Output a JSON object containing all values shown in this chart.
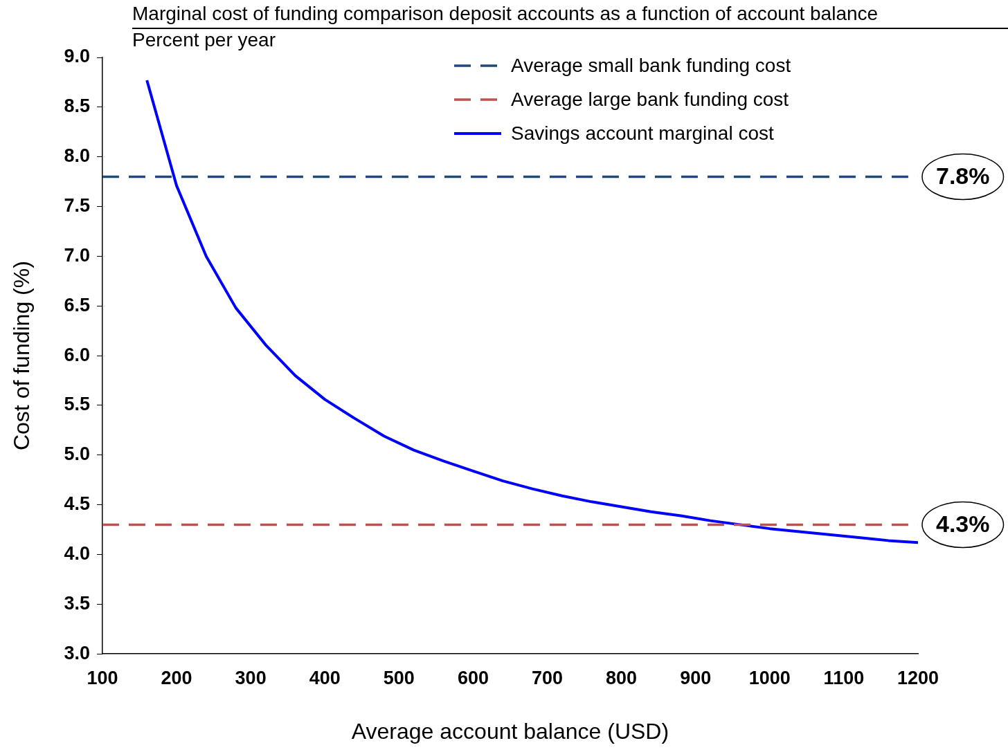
{
  "chart_data": {
    "type": "line",
    "title": "Marginal cost of funding comparison deposit accounts as a function of account balance",
    "subtitle": "Percent per year",
    "xlabel": "Average account balance (USD)",
    "ylabel": "Cost of funding (%)",
    "xlim": [
      100,
      1200
    ],
    "xticks": [
      100,
      200,
      300,
      400,
      500,
      600,
      700,
      800,
      900,
      1000,
      1100,
      1200
    ],
    "ylim": [
      3,
      9
    ],
    "yticks": [
      {
        "value": 3,
        "label": "3.0"
      },
      {
        "value": 3.5,
        "label": "3.5"
      },
      {
        "value": 4,
        "label": "4.0"
      },
      {
        "value": 4.5,
        "label": "4.5"
      },
      {
        "value": 5,
        "label": "5.0"
      },
      {
        "value": 5.5,
        "label": "5.5"
      },
      {
        "value": 6,
        "label": "6.0"
      },
      {
        "value": 6.5,
        "label": "6.5"
      },
      {
        "value": 7,
        "label": "7.0"
      },
      {
        "value": 7.5,
        "label": "7.5"
      },
      {
        "value": 8,
        "label": "8.0"
      },
      {
        "value": 8.5,
        "label": "8.5"
      },
      {
        "value": 9,
        "label": "9.0"
      }
    ],
    "grid": false,
    "legend": "top right",
    "marker": "none",
    "series": [
      {
        "name": "Average small bank funding cost",
        "color": "#1f497d",
        "x": [
          100,
          1200
        ],
        "values": [
          7.8,
          7.8
        ],
        "line_style": "dashed",
        "value_labels": [
          null,
          "7.8%"
        ]
      },
      {
        "name": "Average large bank funding cost",
        "color": "#c0504d",
        "x": [
          100,
          1200
        ],
        "values": [
          4.3,
          4.3
        ],
        "line_style": "dashed",
        "value_labels": [
          null,
          "4.3%"
        ]
      },
      {
        "name": "Savings account marginal cost",
        "color": "#0000ff",
        "line_style": "solid",
        "x": [
          160,
          200,
          240,
          280,
          320,
          360,
          400,
          440,
          480,
          520,
          560,
          600,
          640,
          680,
          720,
          760,
          800,
          840,
          880,
          920,
          960,
          1000,
          1040,
          1080,
          1120,
          1160,
          1200
        ],
        "values": [
          8.77,
          7.71,
          7.0,
          6.48,
          6.11,
          5.8,
          5.56,
          5.37,
          5.19,
          5.05,
          4.94,
          4.84,
          4.74,
          4.66,
          4.59,
          4.53,
          4.48,
          4.43,
          4.39,
          4.34,
          4.3,
          4.26,
          4.23,
          4.2,
          4.17,
          4.14,
          4.12
        ]
      }
    ]
  }
}
